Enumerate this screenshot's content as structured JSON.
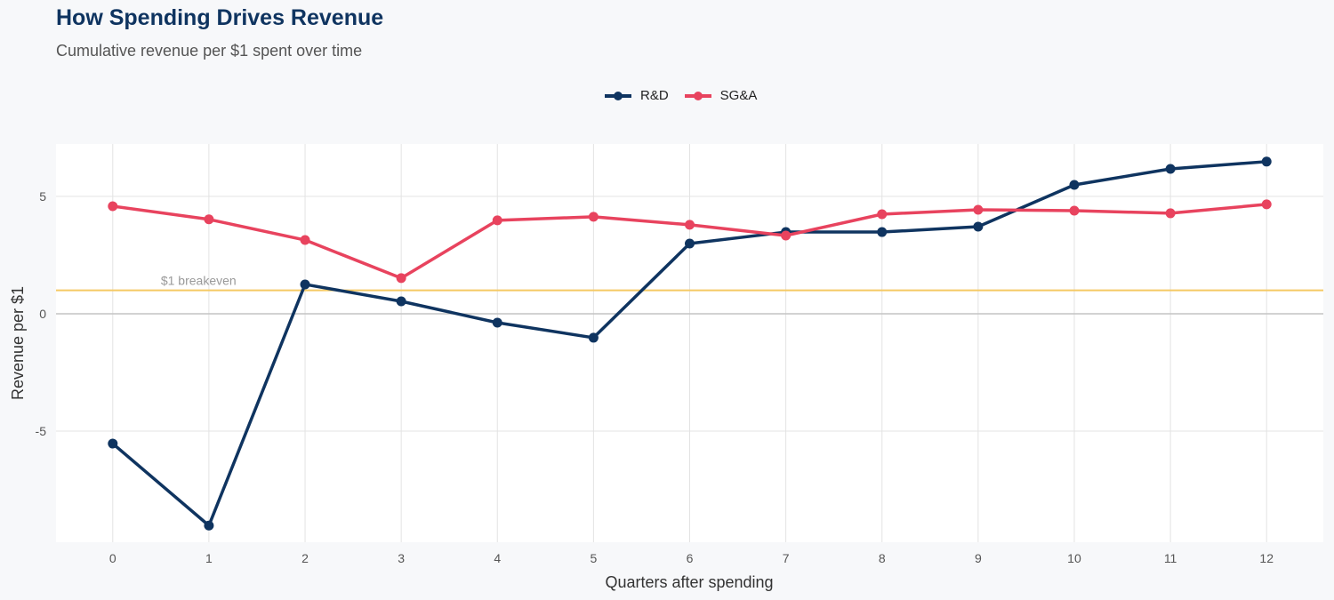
{
  "chart_data": {
    "type": "line",
    "title": "How Spending Drives Revenue",
    "subtitle": "Cumulative revenue per $1 spent over time",
    "xlabel": "Quarters after spending",
    "ylabel": "Revenue per $1",
    "x": [
      0,
      1,
      2,
      3,
      4,
      5,
      6,
      7,
      8,
      9,
      10,
      11,
      12
    ],
    "xticks": [
      "0",
      "1",
      "2",
      "3",
      "4",
      "5",
      "6",
      "7",
      "8",
      "9",
      "10",
      "11",
      "12"
    ],
    "yticks": [
      "-5",
      "0",
      "5"
    ],
    "xlim": [
      -0.59,
      12.59
    ],
    "ylim": [
      -9.73,
      7.23
    ],
    "grid": true,
    "legend_position": "top",
    "series": [
      {
        "name": "R&D",
        "color": "#0f3460",
        "values": [
          -5.53,
          -9.02,
          1.25,
          0.53,
          -0.38,
          -1.02,
          2.99,
          3.48,
          3.48,
          3.71,
          5.49,
          6.17,
          6.48
        ]
      },
      {
        "name": "SG&A",
        "color": "#e8435e",
        "values": [
          4.58,
          4.02,
          3.14,
          1.52,
          3.98,
          4.13,
          3.79,
          3.33,
          4.24,
          4.43,
          4.39,
          4.28,
          4.66
        ]
      }
    ],
    "reference_line": {
      "value": 1,
      "label": "$1 breakeven",
      "color": "#f5c964"
    }
  }
}
